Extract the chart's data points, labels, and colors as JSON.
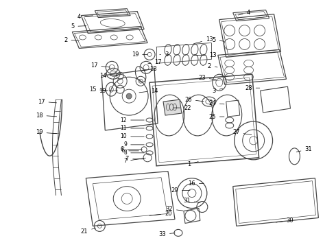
{
  "background_color": "#ffffff",
  "line_color": "#444444",
  "figsize": [
    4.9,
    3.6
  ],
  "dpi": 100,
  "label_fontsize": 6.0,
  "lw_main": 0.9,
  "lw_thin": 0.5
}
